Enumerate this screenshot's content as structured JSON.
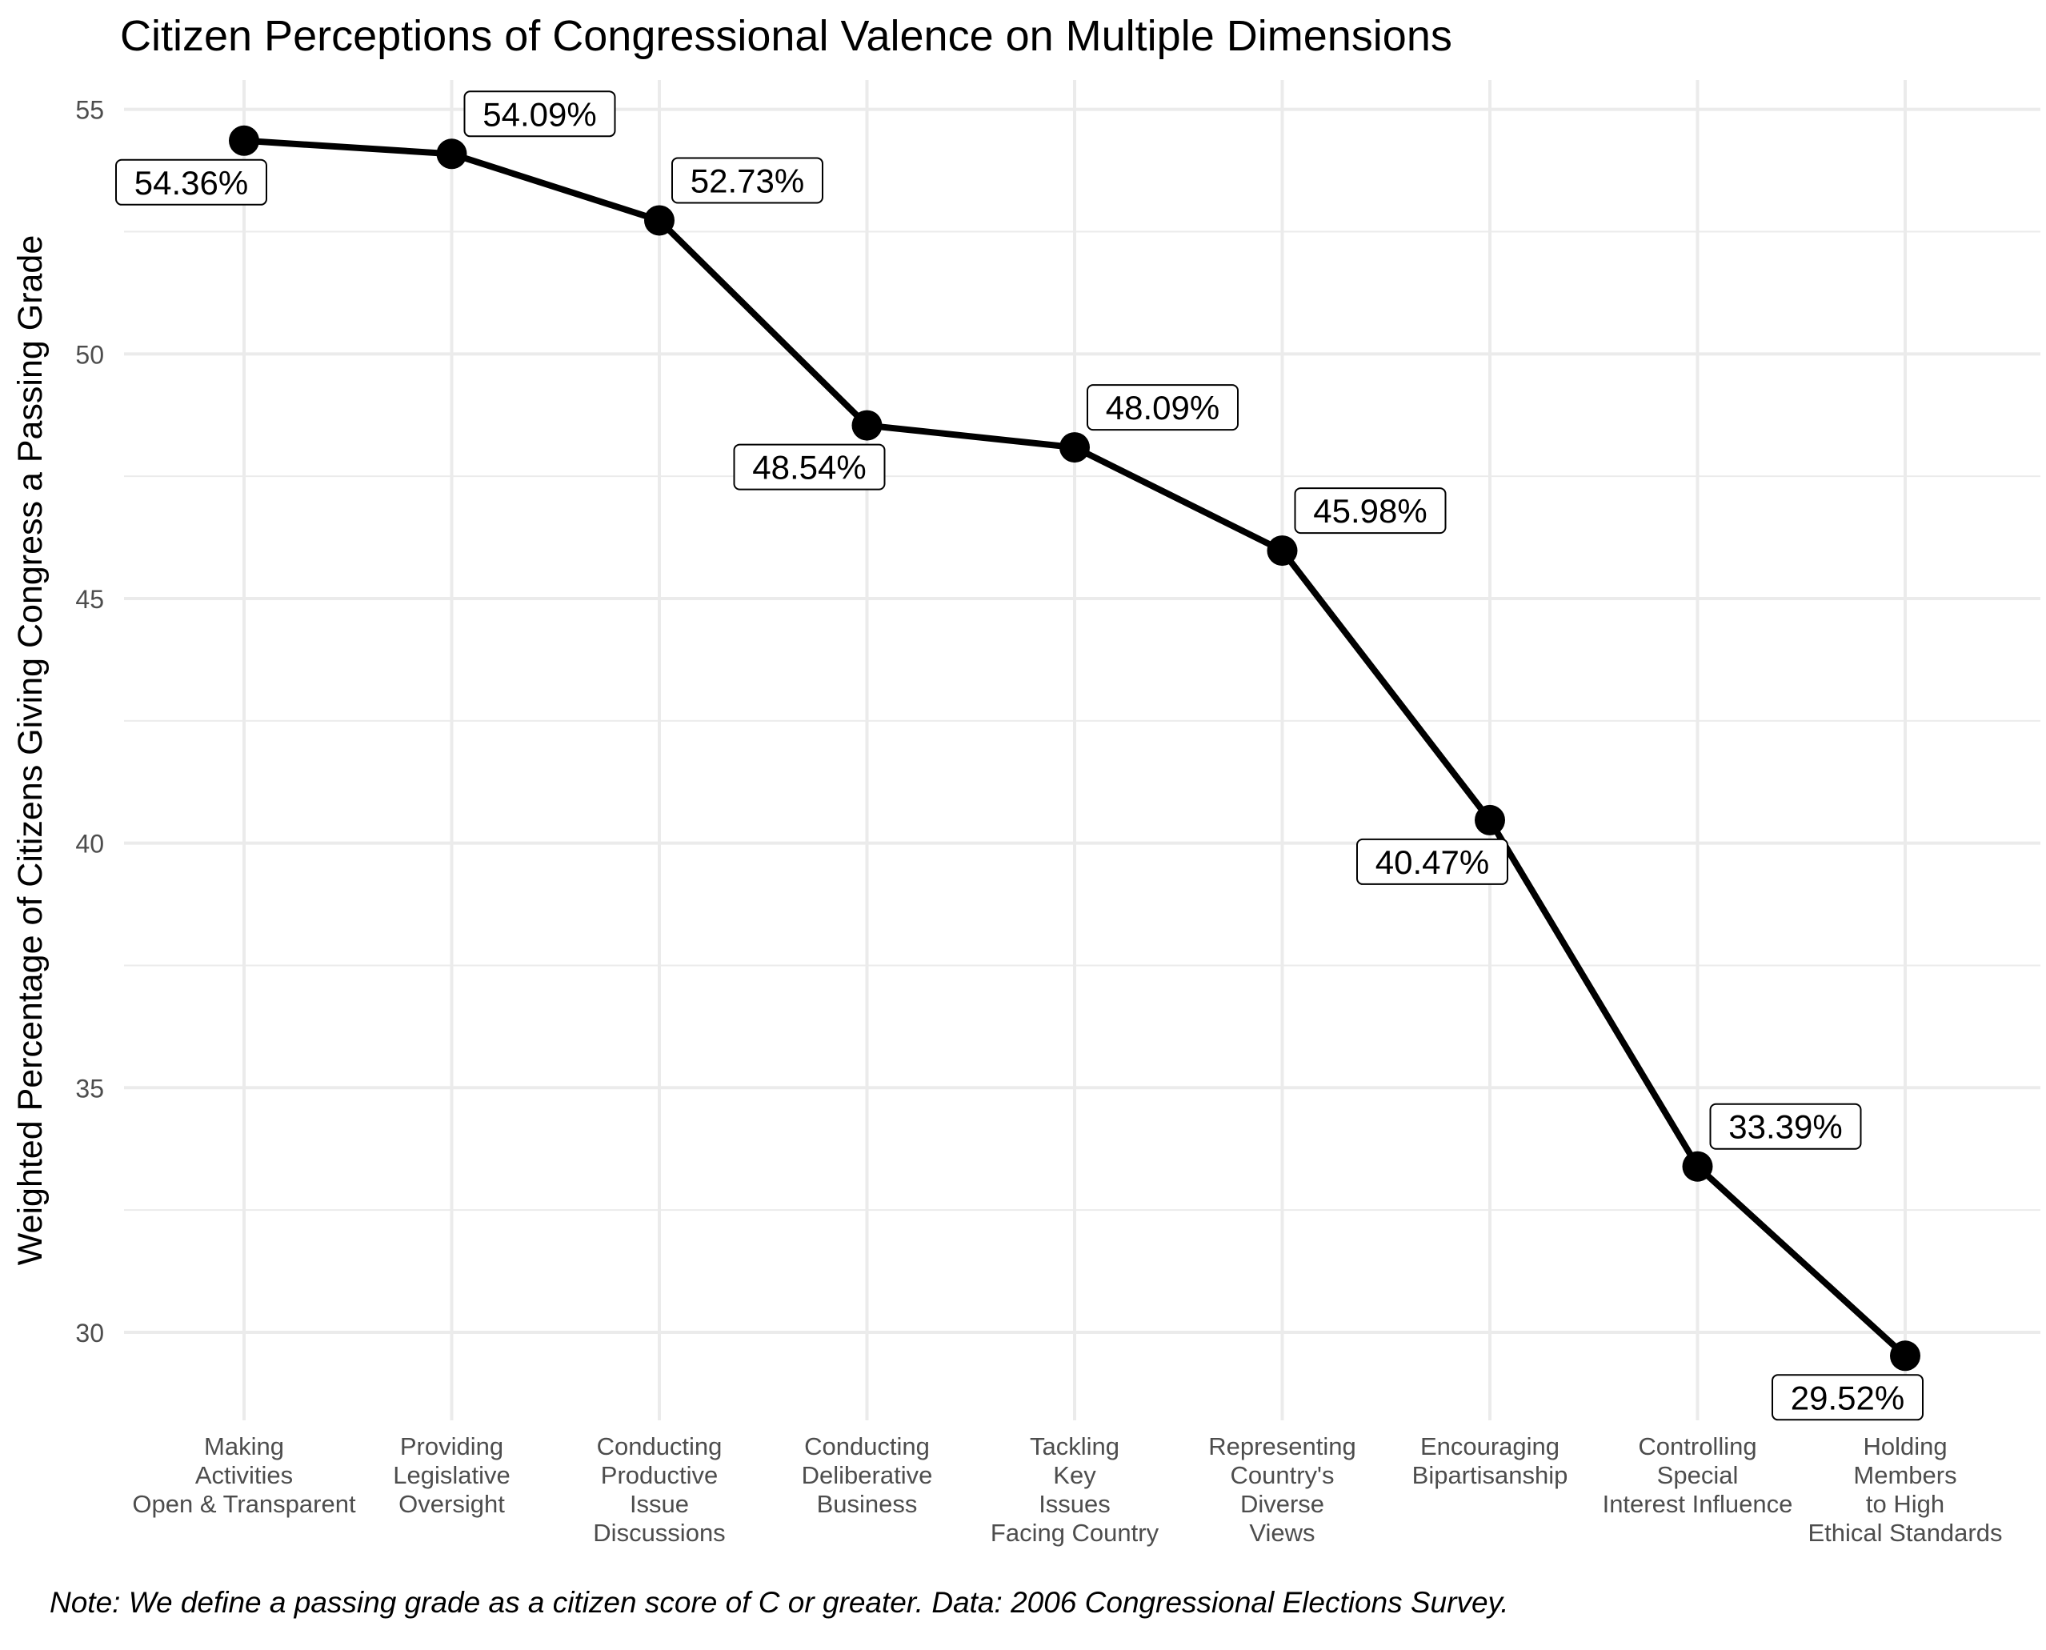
{
  "chart_data": {
    "type": "line",
    "title": "Citizen Perceptions of Congressional Valence on Multiple Dimensions",
    "xlabel": "",
    "ylabel": "Weighted Percentage of Citizens Giving Congress a Passing Grade",
    "note": "Note: We define a passing grade as a citizen score of C or greater. Data: 2006 Congressional Elections Survey.",
    "categories": [
      [
        "Making",
        "Activities",
        "Open & Transparent"
      ],
      [
        "Providing",
        "Legislative",
        "Oversight"
      ],
      [
        "Conducting",
        "Productive",
        "Issue",
        "Discussions"
      ],
      [
        "Conducting",
        "Deliberative",
        "Business"
      ],
      [
        "Tackling",
        "Key",
        "Issues",
        "Facing Country"
      ],
      [
        "Representing",
        "Country's",
        "Diverse",
        "Views"
      ],
      [
        "Encouraging",
        "Bipartisanship"
      ],
      [
        "Controlling",
        "Special",
        "Interest Influence"
      ],
      [
        "Holding",
        "Members",
        "to High",
        "Ethical Standards"
      ]
    ],
    "values": [
      54.36,
      54.09,
      52.73,
      48.54,
      48.09,
      45.98,
      40.47,
      33.39,
      29.52
    ],
    "data_labels": [
      "54.36%",
      "54.09%",
      "52.73%",
      "48.54%",
      "48.09%",
      "45.98%",
      "40.47%",
      "33.39%",
      "29.52%"
    ],
    "label_positions": [
      "below",
      "above",
      "above",
      "below",
      "above",
      "above",
      "below",
      "above",
      "below"
    ],
    "y_ticks": [
      30,
      35,
      40,
      45,
      50,
      55
    ],
    "ylim": [
      28.2,
      55.6
    ],
    "grid": true,
    "legend": "none",
    "colors": {
      "line": "#000000",
      "grid": "#ebebeb",
      "axis_text": "#4d4d4d",
      "label_fill": "#ffffff",
      "label_border": "#000000"
    }
  }
}
